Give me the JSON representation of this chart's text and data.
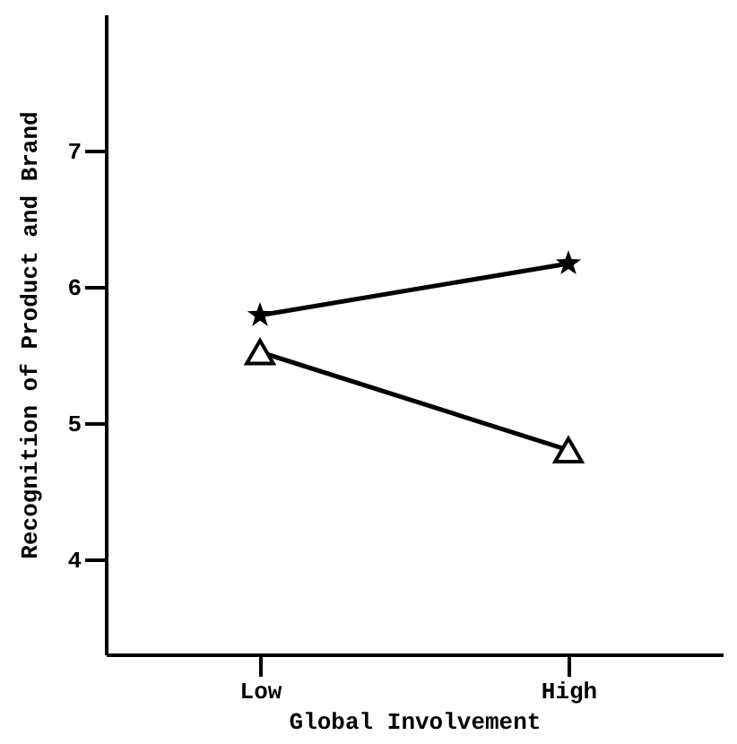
{
  "chart_data": {
    "type": "line",
    "xlabel": "Global Involvement",
    "ylabel": "Recognition of Product and Brand",
    "categories": [
      "Low",
      "High"
    ],
    "series": [
      {
        "color": "#000000",
        "marker": "star",
        "values": [
          5.79,
          6.17
        ]
      },
      {
        "color": "#000000",
        "marker": "triangle",
        "values": [
          5.52,
          4.8
        ]
      }
    ],
    "ylim": [
      3.3,
      8
    ],
    "yticks": [
      4,
      5,
      6,
      7
    ],
    "grid": false
  }
}
